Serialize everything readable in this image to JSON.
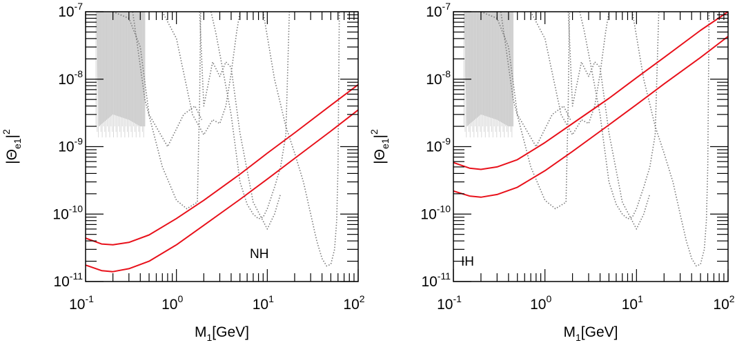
{
  "chart_data": [
    {
      "type": "line",
      "panel_label": "NH",
      "xlabel": {
        "main": "M",
        "sub": "1",
        "unit": "[GeV]"
      },
      "ylabel": {
        "main": "|Θ",
        "sub": "e1",
        "close": "|",
        "sup": "2"
      },
      "x_scale": "log",
      "y_scale": "log",
      "xlim": [
        0.1,
        100
      ],
      "ylim": [
        1e-11,
        1e-07
      ],
      "x_ticks": [
        {
          "base": "10",
          "exp": "-1"
        },
        {
          "base": "10",
          "exp": "0"
        },
        {
          "base": "10",
          "exp": "1"
        },
        {
          "base": "10",
          "exp": "2"
        }
      ],
      "y_ticks": [
        {
          "base": "10",
          "exp": "-11"
        },
        {
          "base": "10",
          "exp": "-10"
        },
        {
          "base": "10",
          "exp": "-9"
        },
        {
          "base": "10",
          "exp": "-8"
        },
        {
          "base": "10",
          "exp": "-7"
        }
      ],
      "grid": false,
      "colors": {
        "band": "#e8101a",
        "constraints": "#777777",
        "excluded": "#c8c8c8"
      },
      "series": [
        {
          "role": "band-upper",
          "x": [
            0.1,
            0.15,
            0.2,
            0.3,
            0.5,
            1,
            2,
            5,
            10,
            20,
            50,
            100
          ],
          "y": [
            4.4e-11,
            3.6e-11,
            3.5e-11,
            3.8e-11,
            4.9e-11,
            8.6e-11,
            1.6e-10,
            3.9e-10,
            8e-10,
            1.6e-09,
            4.1e-09,
            8.3e-09
          ]
        },
        {
          "role": "band-lower",
          "x": [
            0.1,
            0.15,
            0.2,
            0.3,
            0.5,
            1,
            2,
            5,
            10,
            20,
            50,
            100
          ],
          "y": [
            1.75e-11,
            1.45e-11,
            1.4e-11,
            1.55e-11,
            2e-11,
            3.5e-11,
            6.8e-11,
            1.65e-10,
            3.3e-10,
            6.7e-10,
            1.7e-09,
            3.5e-09
          ]
        }
      ],
      "constraints": [
        {
          "x": [
            0.33,
            0.45,
            0.7,
            1.0,
            1.3,
            1.7,
            1.8,
            1.85
          ],
          "y": [
            1e-07,
            5e-09,
            5e-10,
            1.6e-10,
            1.2e-10,
            1.5e-10,
            5e-09,
            1e-07
          ]
        },
        {
          "x": [
            0.2,
            0.3,
            0.4,
            0.5,
            0.8,
            1.2,
            1.6,
            1.9
          ],
          "y": [
            1e-07,
            8e-08,
            3e-08,
            3e-09,
            1e-09,
            3e-09,
            4e-09,
            2.5e-09
          ]
        },
        {
          "x": [
            0.7,
            1.0,
            1.5,
            2.0,
            2.5,
            3.0,
            3.5,
            4.0,
            4.6,
            5.0
          ],
          "y": [
            1e-07,
            4e-08,
            3e-09,
            1.5e-09,
            2.5e-09,
            2.2e-09,
            4e-09,
            1.2e-08,
            5e-08,
            1e-07
          ]
        },
        {
          "x": [
            1.8,
            2.0,
            2.5,
            3.0,
            3.5,
            4.0,
            5.0,
            7.0,
            10.0,
            12.0,
            14.0
          ],
          "y": [
            1e-07,
            4e-09,
            1.8e-08,
            1.1e-08,
            1.8e-08,
            1.5e-08,
            1.6e-09,
            1.5e-10,
            6e-11,
            1e-10,
            2e-10
          ]
        },
        {
          "x": [
            2.4,
            2.7,
            3.2,
            4.0,
            5.0,
            6.0,
            7.0,
            8.0,
            9.0,
            10.0,
            12.0,
            14.0,
            16.0,
            17.5
          ],
          "y": [
            1e-07,
            5e-08,
            1.5e-08,
            3e-09,
            3e-10,
            1.4e-10,
            1e-10,
            8.5e-11,
            9e-11,
            1.2e-10,
            2.5e-10,
            5e-10,
            1.5e-09,
            1e-07
          ]
        },
        {
          "x": [
            9.0,
            12.0,
            16.0,
            20.0,
            25.0,
            30.0,
            35.0,
            40.0,
            45.0,
            50.0,
            55.0,
            58.0,
            60.0,
            62.0
          ],
          "y": [
            1e-07,
            1e-08,
            2e-09,
            8e-10,
            3e-10,
            1e-10,
            4e-11,
            2.2e-11,
            1.7e-11,
            1.8e-11,
            3e-11,
            8e-11,
            5e-10,
            1e-07
          ]
        }
      ],
      "excluded_region": {
        "x_min": 0.13,
        "x_max": 0.45,
        "y_floor": [
          [
            0.13,
            1e-07
          ],
          [
            0.14,
            2e-09
          ],
          [
            0.2,
            3e-09
          ],
          [
            0.3,
            2.5e-09
          ],
          [
            0.4,
            2e-09
          ],
          [
            0.45,
            2e-09
          ]
        ]
      }
    },
    {
      "type": "line",
      "panel_label": "IH",
      "xlabel": {
        "main": "M",
        "sub": "1",
        "unit": "[GeV]"
      },
      "ylabel": {
        "main": "|Θ",
        "sub": "e1",
        "close": "|",
        "sup": "2"
      },
      "x_scale": "log",
      "y_scale": "log",
      "xlim": [
        0.1,
        100
      ],
      "ylim": [
        1e-11,
        1e-07
      ],
      "x_ticks": [
        {
          "base": "10",
          "exp": "-1"
        },
        {
          "base": "10",
          "exp": "0"
        },
        {
          "base": "10",
          "exp": "1"
        },
        {
          "base": "10",
          "exp": "2"
        }
      ],
      "y_ticks": [
        {
          "base": "10",
          "exp": "-11"
        },
        {
          "base": "10",
          "exp": "-10"
        },
        {
          "base": "10",
          "exp": "-9"
        },
        {
          "base": "10",
          "exp": "-8"
        },
        {
          "base": "10",
          "exp": "-7"
        }
      ],
      "grid": false,
      "colors": {
        "band": "#e8101a",
        "constraints": "#777777",
        "excluded": "#c8c8c8"
      },
      "series": [
        {
          "role": "band-upper",
          "x": [
            0.1,
            0.15,
            0.2,
            0.3,
            0.5,
            1,
            2,
            5,
            10,
            20,
            50,
            100
          ],
          "y": [
            5.8e-10,
            4.8e-10,
            4.6e-10,
            5e-10,
            6.4e-10,
            1.15e-09,
            2.2e-09,
            5.2e-09,
            1.05e-08,
            2.1e-08,
            5.3e-08,
            1e-07
          ]
        },
        {
          "role": "band-lower",
          "x": [
            0.1,
            0.15,
            0.2,
            0.3,
            0.5,
            1,
            2,
            5,
            10,
            20,
            50,
            100
          ],
          "y": [
            2.2e-10,
            1.85e-10,
            1.78e-10,
            1.95e-10,
            2.5e-10,
            4.4e-10,
            8.5e-10,
            2.1e-09,
            4.2e-09,
            8.5e-09,
            2.1e-08,
            4.3e-08
          ]
        }
      ],
      "constraints": [
        {
          "x": [
            0.33,
            0.45,
            0.7,
            1.0,
            1.3,
            1.7,
            1.8,
            1.85
          ],
          "y": [
            1e-07,
            5e-09,
            5e-10,
            1.6e-10,
            1.2e-10,
            1.5e-10,
            5e-09,
            1e-07
          ]
        },
        {
          "x": [
            0.2,
            0.3,
            0.4,
            0.5,
            0.8,
            1.2,
            1.6,
            1.9
          ],
          "y": [
            1e-07,
            8e-08,
            3e-08,
            3e-09,
            1e-09,
            3e-09,
            4e-09,
            2.5e-09
          ]
        },
        {
          "x": [
            0.7,
            1.0,
            1.5,
            2.0,
            2.5,
            3.0,
            3.5,
            4.0,
            4.6,
            5.0
          ],
          "y": [
            1e-07,
            4e-08,
            3e-09,
            1.5e-09,
            2.5e-09,
            2.2e-09,
            4e-09,
            1.2e-08,
            5e-08,
            1e-07
          ]
        },
        {
          "x": [
            1.8,
            2.0,
            2.5,
            3.0,
            3.5,
            4.0,
            5.0,
            7.0,
            10.0,
            12.0,
            14.0
          ],
          "y": [
            1e-07,
            4e-09,
            1.8e-08,
            1.1e-08,
            1.8e-08,
            1.5e-08,
            1.6e-09,
            1.5e-10,
            6e-11,
            1e-10,
            2e-10
          ]
        },
        {
          "x": [
            2.4,
            2.7,
            3.2,
            4.0,
            5.0,
            6.0,
            7.0,
            8.0,
            9.0,
            10.0,
            12.0,
            14.0,
            16.0,
            17.5
          ],
          "y": [
            1e-07,
            5e-08,
            1.5e-08,
            3e-09,
            3e-10,
            1.4e-10,
            1e-10,
            8.5e-11,
            9e-11,
            1.2e-10,
            2.5e-10,
            5e-10,
            1.5e-09,
            1e-07
          ]
        },
        {
          "x": [
            9.0,
            12.0,
            16.0,
            20.0,
            25.0,
            30.0,
            35.0,
            40.0,
            45.0,
            50.0,
            55.0,
            58.0,
            60.0,
            62.0
          ],
          "y": [
            1e-07,
            1e-08,
            2e-09,
            8e-10,
            3e-10,
            1e-10,
            4e-11,
            2.2e-11,
            1.7e-11,
            1.8e-11,
            3e-11,
            8e-11,
            5e-10,
            1e-07
          ]
        }
      ],
      "excluded_region": {
        "x_min": 0.13,
        "x_max": 0.45,
        "y_floor": [
          [
            0.13,
            1e-07
          ],
          [
            0.14,
            2e-09
          ],
          [
            0.2,
            3e-09
          ],
          [
            0.3,
            2.5e-09
          ],
          [
            0.4,
            2e-09
          ],
          [
            0.45,
            2e-09
          ]
        ]
      }
    }
  ]
}
